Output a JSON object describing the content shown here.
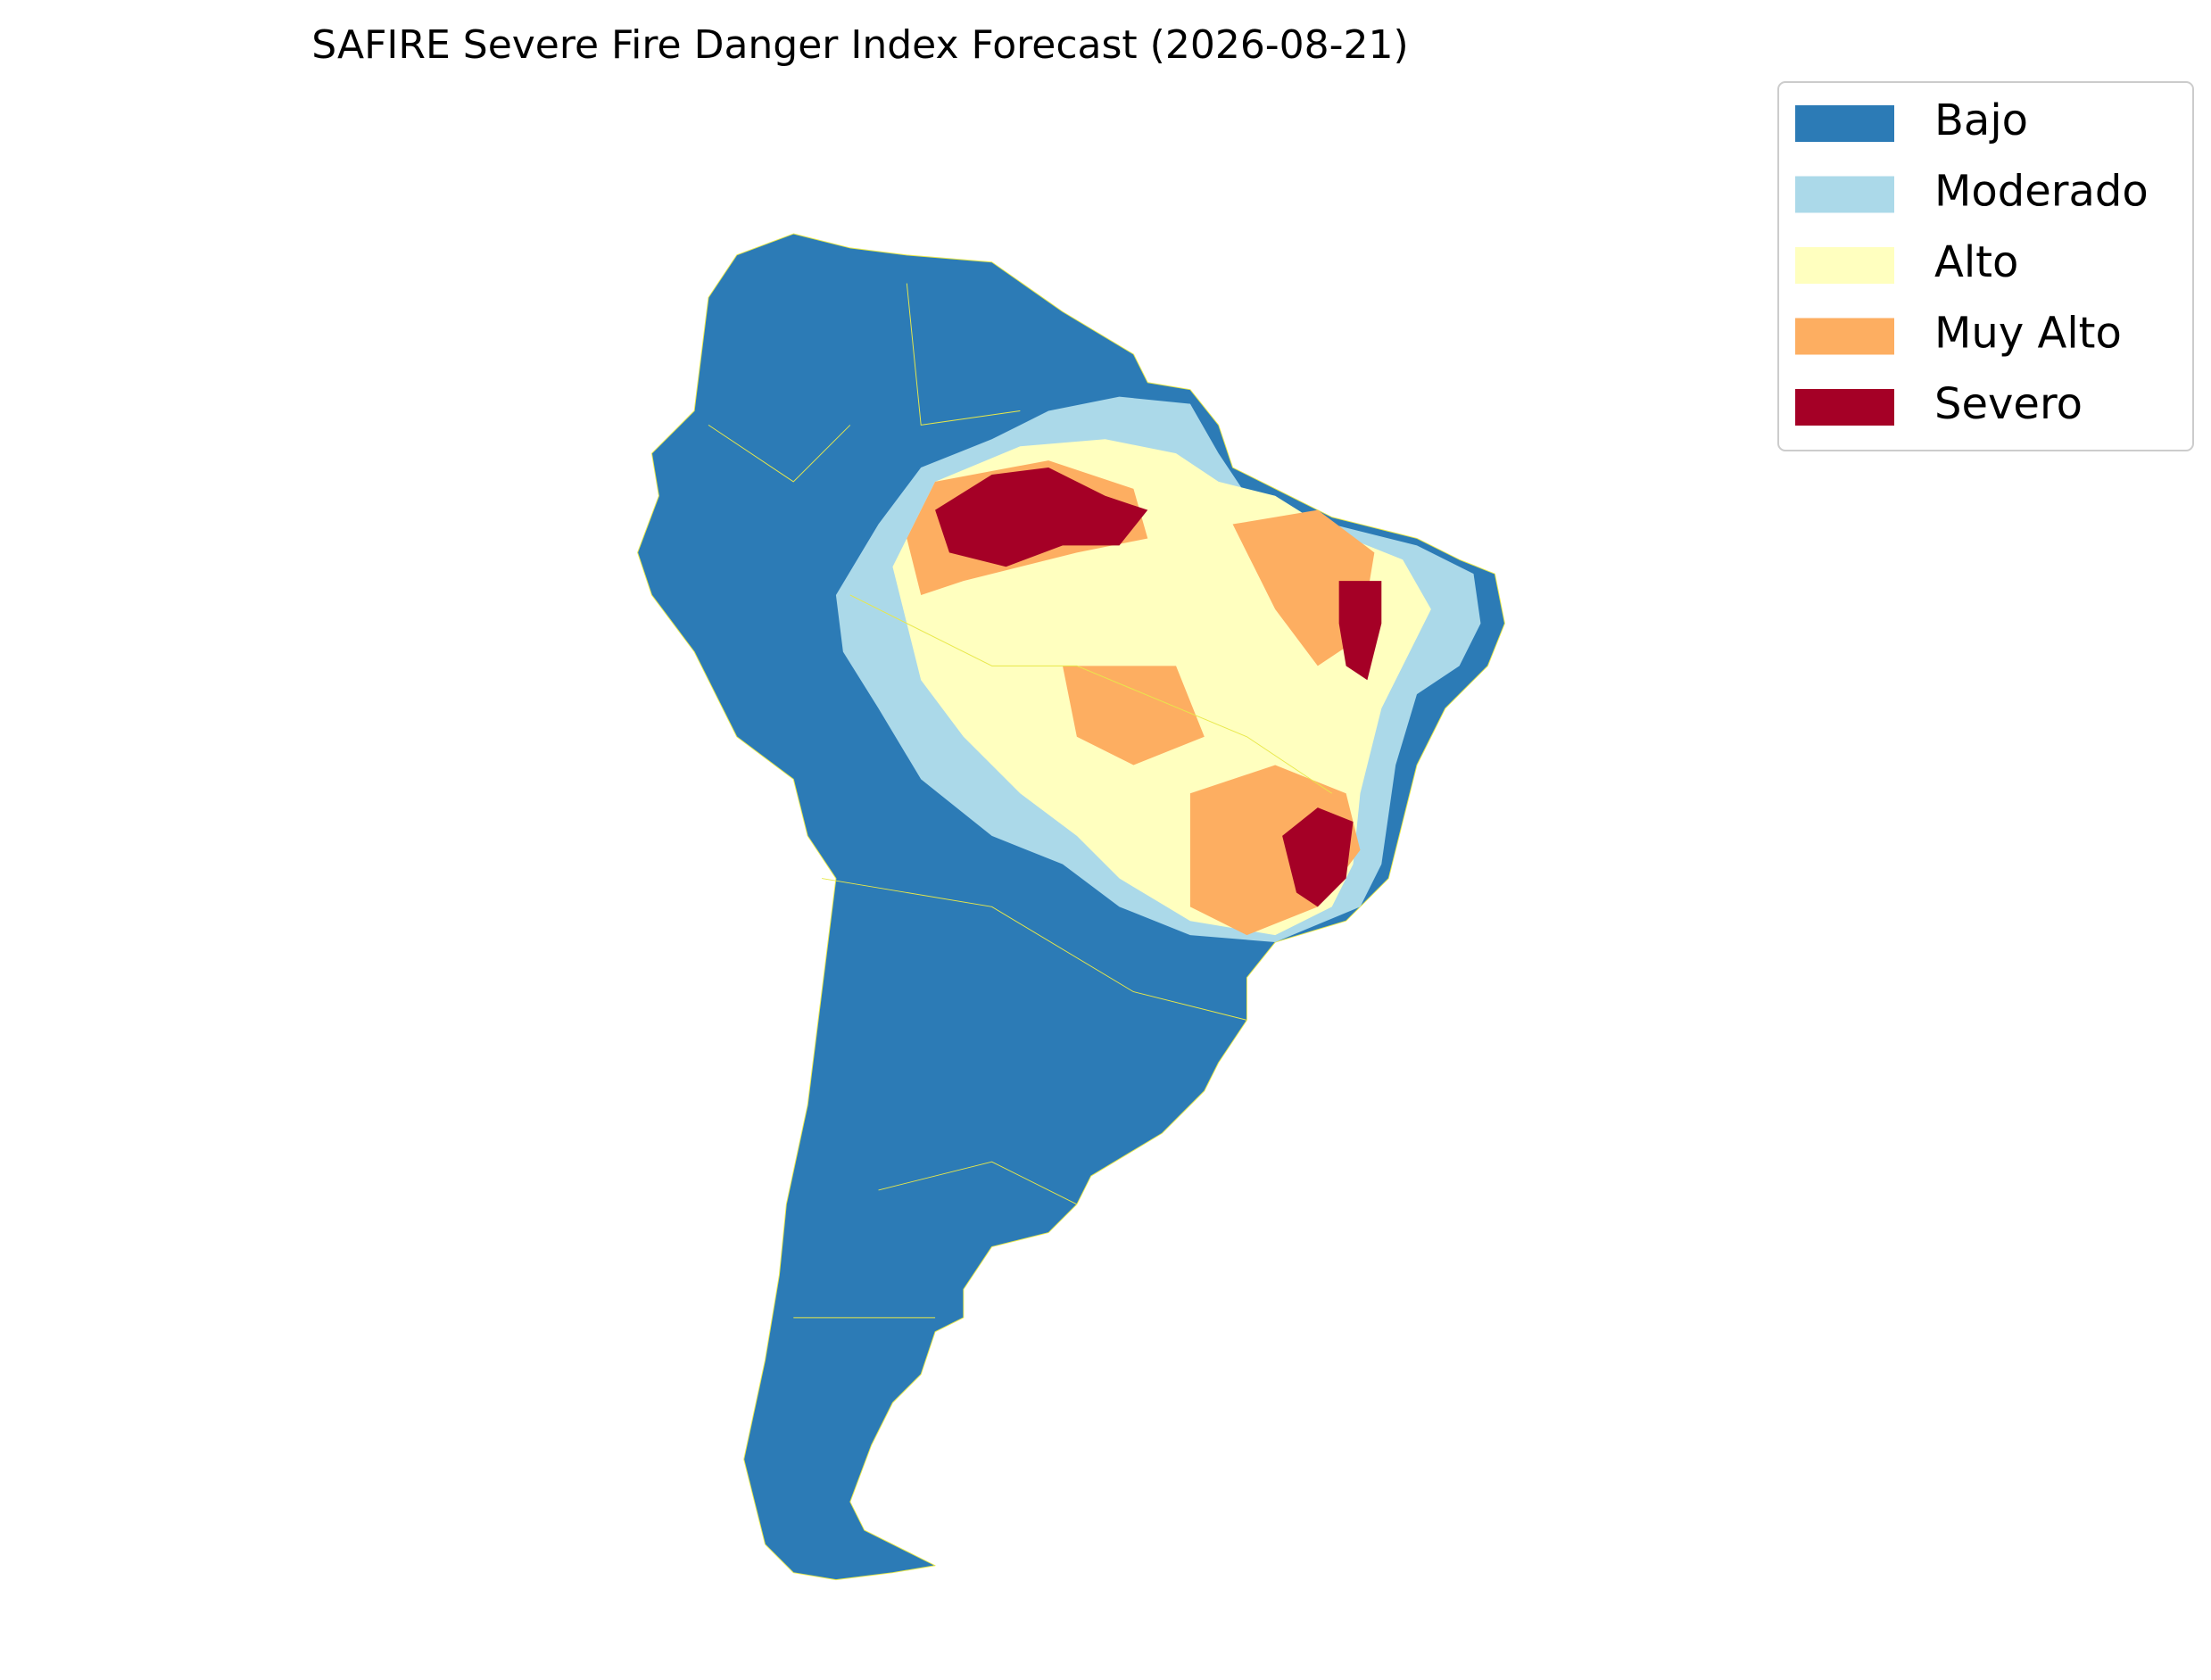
{
  "title": "SAFIRE Severe Fire Danger Index Forecast (2026-08-21)",
  "legend": [
    {
      "label": "Bajo",
      "color": "#2c7bb6"
    },
    {
      "label": "Moderado",
      "color": "#abd9e9"
    },
    {
      "label": "Alto",
      "color": "#ffffbf"
    },
    {
      "label": "Muy Alto",
      "color": "#fdae61"
    },
    {
      "label": "Severo",
      "color": "#a50026"
    }
  ]
}
